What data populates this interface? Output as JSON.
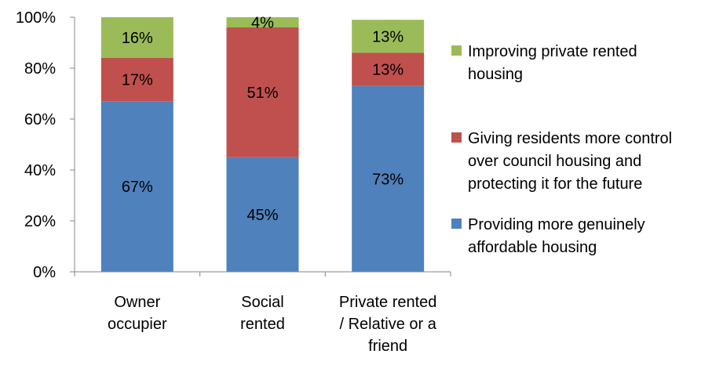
{
  "chart_data": {
    "type": "bar",
    "stacked": true,
    "categories": [
      [
        "Owner",
        "occupier"
      ],
      [
        "Social",
        "rented"
      ],
      [
        "Private rented",
        "/ Relative or a",
        "friend"
      ]
    ],
    "series": [
      {
        "name": [
          "Providing more genuinely",
          "affordable housing"
        ],
        "values": [
          67,
          45,
          73
        ],
        "labels": [
          "67%",
          "45%",
          "73%"
        ],
        "color": "#4f81bd"
      },
      {
        "name": [
          "Giving residents more control",
          "over council housing and",
          "protecting it for the future"
        ],
        "values": [
          17,
          51,
          13
        ],
        "labels": [
          "17%",
          "51%",
          "13%"
        ],
        "color": "#c0504d"
      },
      {
        "name": [
          "Improving private rented",
          "housing"
        ],
        "values": [
          16,
          4,
          13
        ],
        "labels": [
          "16%",
          "4%",
          "13%"
        ],
        "color": "#9bbb59"
      }
    ],
    "ylim": [
      0,
      100
    ],
    "y_ticks": [
      0,
      20,
      40,
      60,
      80,
      100
    ],
    "y_tick_labels": [
      "0%",
      "20%",
      "40%",
      "60%",
      "80%",
      "100%"
    ],
    "grid": false,
    "legend_position": "right",
    "title": "",
    "xlabel": "",
    "ylabel": ""
  }
}
